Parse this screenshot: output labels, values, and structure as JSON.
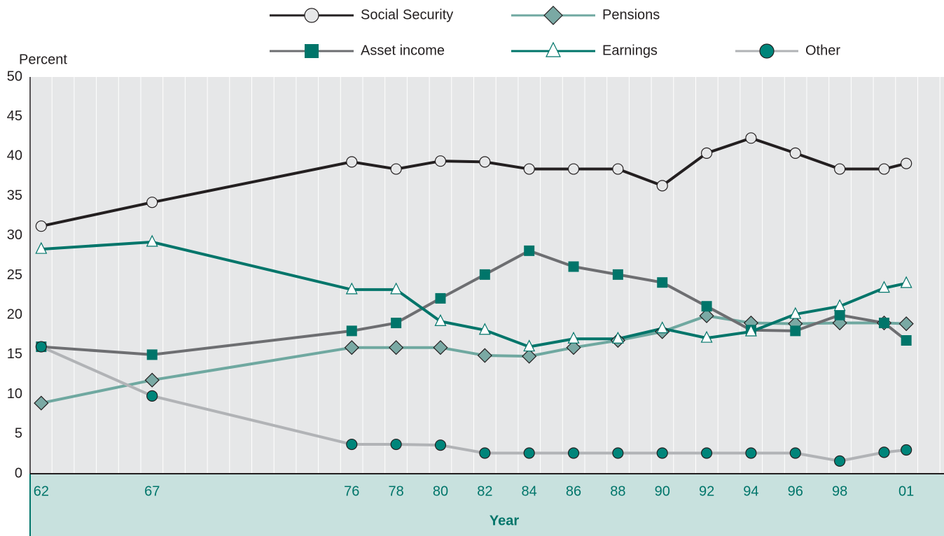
{
  "chart_data": {
    "type": "line",
    "y_label": "Percent",
    "x_label": "Year",
    "x": [
      62,
      67,
      76,
      78,
      80,
      82,
      84,
      86,
      88,
      90,
      92,
      94,
      96,
      98,
      100,
      101
    ],
    "xlim": [
      61.5,
      102.7
    ],
    "xticks": [
      62,
      67,
      76,
      78,
      80,
      82,
      84,
      86,
      88,
      90,
      92,
      94,
      96,
      98,
      {
        "value": 101,
        "label": "01"
      }
    ],
    "ylim": [
      0,
      50
    ],
    "yticks": [
      0,
      5,
      10,
      15,
      20,
      25,
      30,
      35,
      40,
      45,
      50
    ],
    "series": [
      {
        "name": "Social Security",
        "color": "#231f20",
        "marker": "circle",
        "marker_color": "#e6e7e8",
        "values": [
          31.2,
          34.2,
          39.3,
          38.4,
          39.4,
          39.3,
          38.4,
          38.4,
          38.4,
          36.3,
          40.4,
          42.3,
          40.4,
          38.4,
          38.4,
          39.1
        ]
      },
      {
        "name": "Pensions",
        "color": "#6fa8a0",
        "marker": "diamond",
        "marker_color": "#7aa9a4",
        "values": [
          8.9,
          11.8,
          15.9,
          15.9,
          15.9,
          14.9,
          14.8,
          15.9,
          16.8,
          17.9,
          19.9,
          19.0,
          18.9,
          19.0,
          19.0,
          18.9
        ]
      },
      {
        "name": "Asset income",
        "color": "#6d6e71",
        "marker": "square",
        "marker_color": "#00756a",
        "values": [
          16.0,
          15.0,
          18.0,
          19.0,
          22.1,
          25.1,
          28.1,
          26.1,
          25.1,
          24.1,
          21.1,
          18.1,
          18.0,
          20.0,
          19.0,
          16.8
        ]
      },
      {
        "name": "Earnings",
        "color": "#00756a",
        "marker": "triangle",
        "marker_color": "#ffffff",
        "values": [
          28.3,
          29.2,
          23.2,
          23.2,
          19.2,
          18.1,
          16.0,
          17.0,
          17.0,
          18.3,
          17.1,
          17.9,
          20.1,
          21.1,
          23.4,
          24.0
        ]
      },
      {
        "name": "Other",
        "color": "#b1b3b6",
        "marker": "circle",
        "marker_color": "#00857a",
        "values": [
          16.0,
          9.8,
          3.7,
          3.7,
          3.6,
          2.6,
          2.6,
          2.6,
          2.6,
          2.6,
          2.6,
          2.6,
          2.6,
          1.6,
          2.7,
          3.0
        ]
      }
    ]
  }
}
